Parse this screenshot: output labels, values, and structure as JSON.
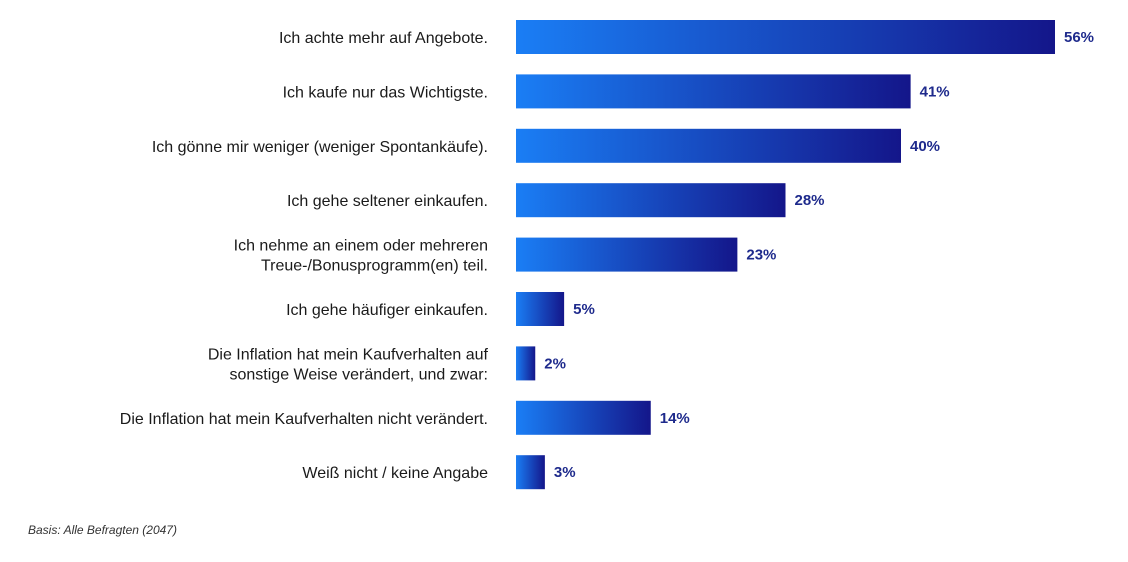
{
  "chart_data": {
    "type": "bar",
    "orientation": "horizontal",
    "categories": [
      "Ich achte mehr auf Angebote.",
      "Ich kaufe nur das Wichtigste.",
      "Ich gönne mir weniger (weniger Spontankäufe).",
      "Ich gehe seltener einkaufen.",
      "Ich nehme an einem oder mehreren\nTreue-/Bonusprogramm(en) teil.",
      "Ich gehe häufiger einkaufen.",
      "Die Inflation hat mein Kaufverhalten auf\nsonstige Weise verändert, und zwar:",
      "Die Inflation hat mein Kaufverhalten nicht verändert.",
      "Weiß nicht / keine Angabe"
    ],
    "values": [
      56,
      41,
      40,
      28,
      23,
      5,
      2,
      14,
      3
    ],
    "value_labels": [
      "56%",
      "41%",
      "40%",
      "28%",
      "23%",
      "5%",
      "2%",
      "14%",
      "3%"
    ],
    "xlim": [
      0,
      56
    ],
    "grid": false,
    "legend": "none",
    "colors": {
      "bar_light": "#1a7ef5",
      "bar_dark": "#14168a",
      "value_text": "#1e2a8c"
    }
  },
  "footnote": "Basis: Alle Befragten (2047)"
}
